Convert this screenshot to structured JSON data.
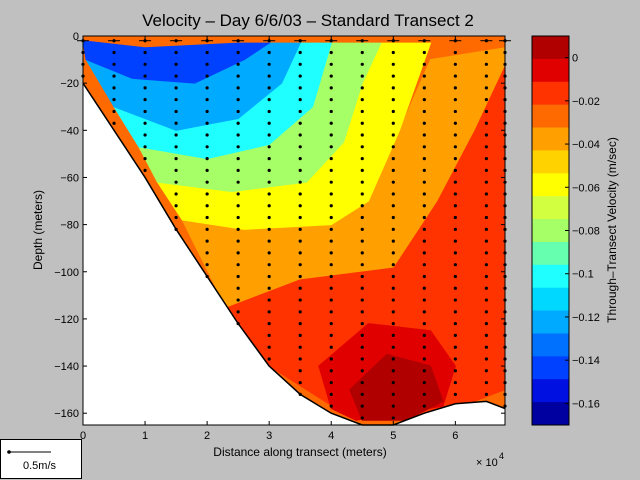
{
  "chart_data": {
    "type": "heatmap",
    "title": "Velocity – Day 6/6/03 – Standard Transect 2",
    "xlabel": "Distance along transect (meters)",
    "xscale_note": "× 10",
    "xscale_exp": "4",
    "ylabel": "Depth (meters)",
    "colorbar_label": "Through–Transect Velocity (m/sec)",
    "xlim": [
      0,
      6.8
    ],
    "ylim": [
      -165,
      0
    ],
    "x_ticks": [
      "0",
      "1",
      "2",
      "3",
      "4",
      "5",
      "6"
    ],
    "x_tick_values": [
      0,
      1,
      2,
      3,
      4,
      5,
      6
    ],
    "y_ticks": [
      "0",
      "−20",
      "−40",
      "−60",
      "−80",
      "−100",
      "−120",
      "−140",
      "−160"
    ],
    "y_tick_values": [
      0,
      -20,
      -40,
      -60,
      -80,
      -100,
      -120,
      -140,
      -160
    ],
    "clim": [
      -0.17,
      0.01
    ],
    "colorbar_ticks": [
      "0",
      "−0.02",
      "−0.04",
      "−0.06",
      "−0.08",
      "−0.1",
      "−0.12",
      "−0.14",
      "−0.16"
    ],
    "colorbar_tick_values": [
      0,
      -0.02,
      -0.04,
      -0.06,
      -0.08,
      -0.1,
      -0.12,
      -0.14,
      -0.16
    ],
    "colorbar_colors": [
      "#b00000",
      "#e00000",
      "#ff3300",
      "#ff6a00",
      "#ffa000",
      "#ffd200",
      "#ffff00",
      "#d2ff40",
      "#a6ff66",
      "#66ffb0",
      "#20ffff",
      "#00d8ff",
      "#00aaff",
      "#0070ff",
      "#0040ff",
      "#0010e0",
      "#0000a0"
    ],
    "bottom_profile": [
      [
        0,
        -20
      ],
      [
        0.5,
        -40
      ],
      [
        1,
        -60
      ],
      [
        1.5,
        -82
      ],
      [
        2,
        -102
      ],
      [
        2.5,
        -122
      ],
      [
        3,
        -140
      ],
      [
        3.5,
        -152
      ],
      [
        4,
        -160
      ],
      [
        4.5,
        -165
      ],
      [
        5,
        -165
      ],
      [
        5.5,
        -160
      ],
      [
        6,
        -156
      ],
      [
        6.5,
        -155
      ],
      [
        6.8,
        -158
      ]
    ],
    "sample_x": [
      0,
      0.5,
      1,
      1.5,
      2,
      2.5,
      3,
      3.5,
      4,
      4.5,
      5,
      5.5,
      6,
      6.5,
      6.8
    ],
    "sample_depth_step": 5,
    "velocity_regions": [
      {
        "level": 0.0,
        "desc": "core",
        "points": [
          [
            4.3,
            -150
          ],
          [
            4.9,
            -135
          ],
          [
            5.6,
            -140
          ],
          [
            5.8,
            -155
          ],
          [
            5.2,
            -163
          ],
          [
            4.5,
            -163
          ]
        ]
      },
      {
        "level": -0.01,
        "points": [
          [
            3.8,
            -140
          ],
          [
            4.6,
            -122
          ],
          [
            5.6,
            -125
          ],
          [
            6.0,
            -140
          ],
          [
            5.8,
            -157
          ],
          [
            4.4,
            -163
          ],
          [
            4.0,
            -158
          ]
        ]
      },
      {
        "level": -0.02,
        "points": [
          [
            2.3,
            -115
          ],
          [
            3.5,
            -103
          ],
          [
            5.0,
            -98
          ],
          [
            5.7,
            -70
          ],
          [
            6.3,
            -40
          ],
          [
            6.8,
            -10
          ],
          [
            6.8,
            -150
          ],
          [
            6.2,
            -156
          ],
          [
            5.2,
            -163
          ],
          [
            4.2,
            -160
          ],
          [
            3.0,
            -140
          ]
        ]
      },
      {
        "level": -0.04,
        "points": [
          [
            1.6,
            -78
          ],
          [
            2.6,
            -82
          ],
          [
            4.0,
            -80
          ],
          [
            4.6,
            -70
          ],
          [
            5.1,
            -40
          ],
          [
            5.6,
            -10
          ],
          [
            6.8,
            -5
          ],
          [
            6.8,
            -12
          ],
          [
            6.3,
            -40
          ],
          [
            5.7,
            -70
          ],
          [
            5.0,
            -98
          ],
          [
            3.5,
            -103
          ],
          [
            2.3,
            -115
          ]
        ]
      },
      {
        "level": -0.06,
        "points": [
          [
            1.2,
            -62
          ],
          [
            2.4,
            -66
          ],
          [
            3.6,
            -62
          ],
          [
            4.2,
            -45
          ],
          [
            4.5,
            -20
          ],
          [
            4.8,
            -3
          ],
          [
            5.6,
            -3
          ],
          [
            5.1,
            -40
          ],
          [
            4.6,
            -70
          ],
          [
            4.0,
            -80
          ],
          [
            2.6,
            -82
          ],
          [
            1.6,
            -78
          ]
        ]
      },
      {
        "level": -0.08,
        "points": [
          [
            0.9,
            -47
          ],
          [
            2.0,
            -52
          ],
          [
            3.0,
            -46
          ],
          [
            3.7,
            -30
          ],
          [
            4.0,
            -3
          ],
          [
            4.8,
            -3
          ],
          [
            4.5,
            -20
          ],
          [
            4.2,
            -45
          ],
          [
            3.6,
            -62
          ],
          [
            2.4,
            -66
          ],
          [
            1.2,
            -62
          ]
        ]
      },
      {
        "level": -0.1,
        "points": [
          [
            0.5,
            -30
          ],
          [
            1.5,
            -40
          ],
          [
            2.5,
            -35
          ],
          [
            3.2,
            -20
          ],
          [
            3.5,
            -3
          ],
          [
            4.0,
            -3
          ],
          [
            3.7,
            -30
          ],
          [
            3.0,
            -46
          ],
          [
            2.0,
            -52
          ],
          [
            0.9,
            -47
          ]
        ]
      },
      {
        "level": -0.12,
        "points": [
          [
            0.05,
            -10
          ],
          [
            0.8,
            -18
          ],
          [
            1.8,
            -20
          ],
          [
            2.6,
            -10
          ],
          [
            3.0,
            -3
          ],
          [
            3.5,
            -3
          ],
          [
            3.2,
            -20
          ],
          [
            2.5,
            -35
          ],
          [
            1.5,
            -40
          ],
          [
            0.5,
            -30
          ]
        ]
      },
      {
        "level": -0.14,
        "points": [
          [
            0,
            -2
          ],
          [
            1,
            -5
          ],
          [
            2.5,
            -3
          ],
          [
            3,
            -3
          ],
          [
            2.6,
            -10
          ],
          [
            1.8,
            -20
          ],
          [
            0.8,
            -18
          ],
          [
            0.05,
            -10
          ]
        ]
      }
    ]
  },
  "legend": {
    "scale_label": "0.5m/s"
  }
}
